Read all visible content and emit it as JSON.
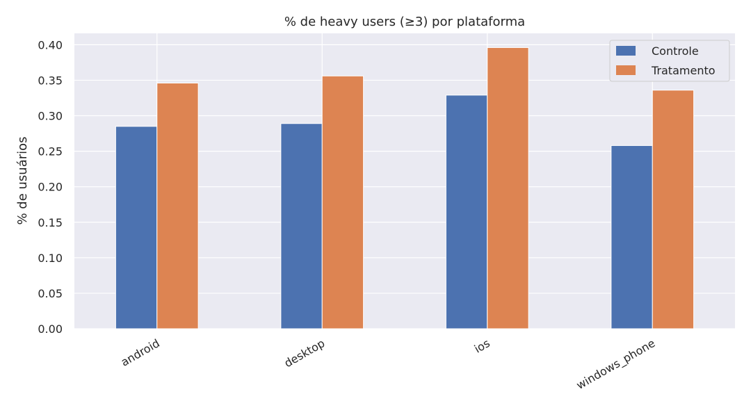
{
  "chart_data": {
    "type": "bar",
    "title": "% de heavy users (≥3) por plataforma",
    "xlabel": "",
    "ylabel": "% de usuários",
    "categories": [
      "android",
      "desktop",
      "ios",
      "windows_phone"
    ],
    "series": [
      {
        "name": "Controle",
        "color": "#4c72b0",
        "values": [
          0.285,
          0.289,
          0.329,
          0.258
        ]
      },
      {
        "name": "Tratamento",
        "color": "#dd8452",
        "values": [
          0.346,
          0.356,
          0.396,
          0.336
        ]
      }
    ],
    "ylim": [
      0,
      0.416
    ],
    "yticks": [
      "0.00",
      "0.05",
      "0.10",
      "0.15",
      "0.20",
      "0.25",
      "0.30",
      "0.35",
      "0.40"
    ],
    "grid": true,
    "legend_position": "top-right",
    "background": "#eaeaf2"
  }
}
